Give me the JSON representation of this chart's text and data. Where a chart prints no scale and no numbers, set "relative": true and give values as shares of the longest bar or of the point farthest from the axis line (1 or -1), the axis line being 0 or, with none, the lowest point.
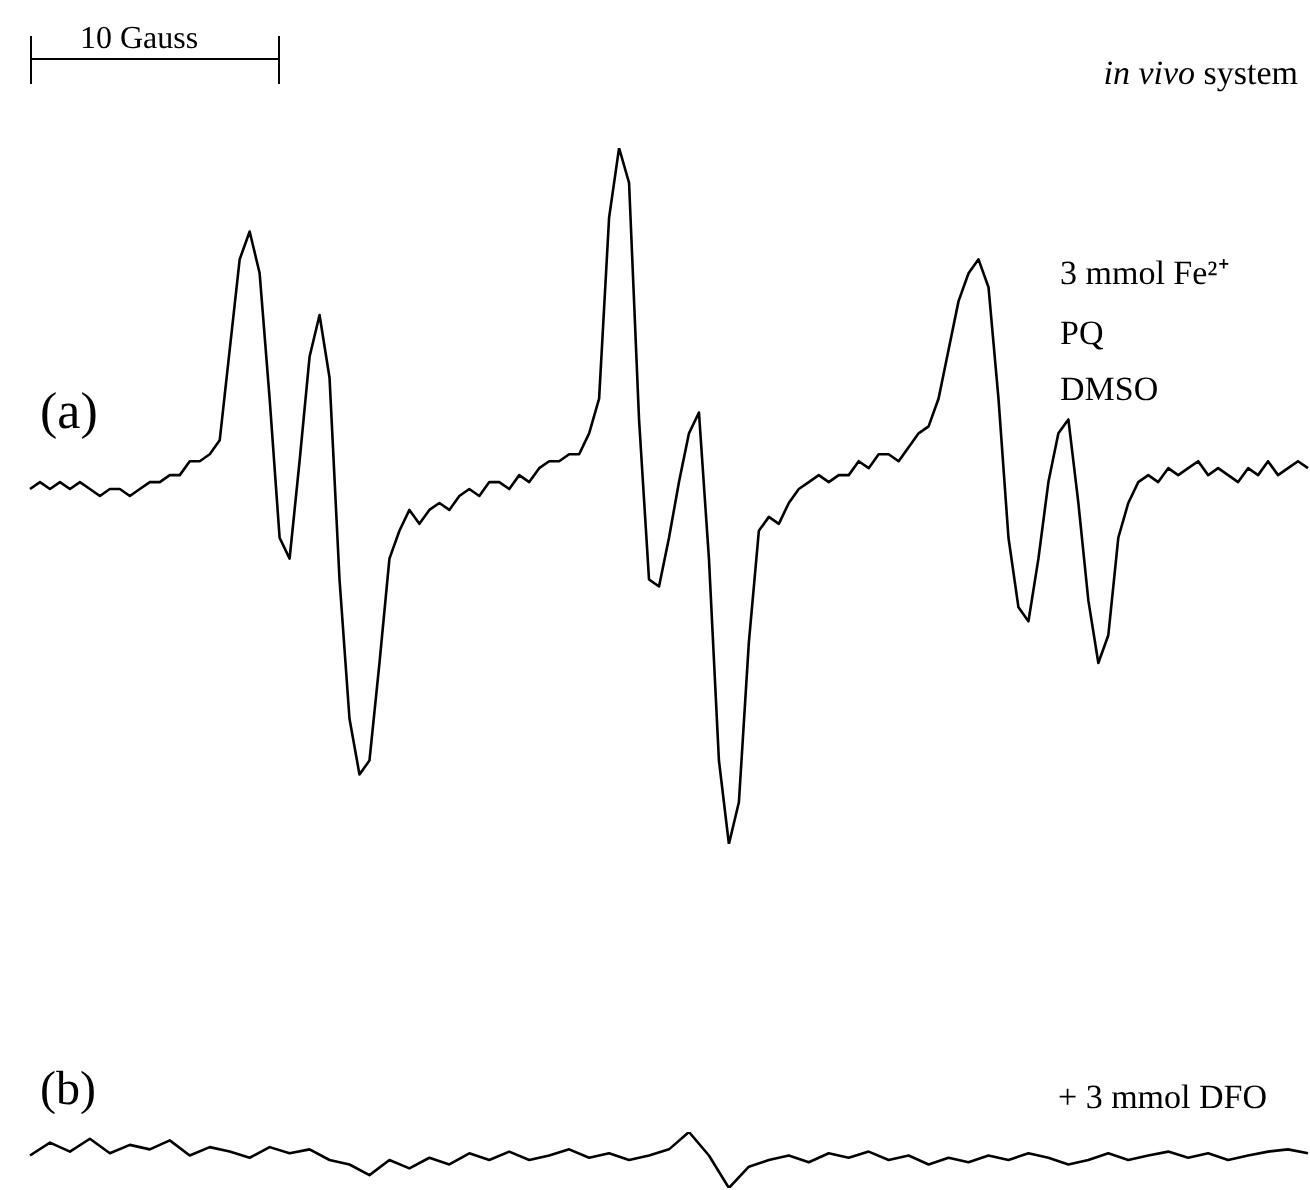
{
  "chart_data": [
    {
      "type": "line",
      "relative": true,
      "color": "#000000",
      "marker": "none",
      "legend": false,
      "annotations": [
        "10 Gauss",
        "in vivo system",
        "3 mmol Fe²⁺",
        "PQ",
        "DMSO",
        "(a)"
      ],
      "categories": [
        null,
        null,
        null,
        null,
        null,
        null,
        null,
        null,
        null,
        null,
        null,
        null,
        null,
        null,
        null,
        null,
        null,
        null,
        null,
        null,
        null,
        null,
        null,
        null,
        null,
        null,
        null,
        null,
        null,
        null,
        null,
        null,
        null,
        null,
        null,
        null,
        null,
        null,
        null,
        null,
        null,
        null,
        null,
        null,
        null,
        null,
        null,
        null,
        null,
        null,
        null,
        null,
        null,
        null,
        null,
        null,
        null,
        null,
        null,
        null,
        null,
        null,
        null,
        null,
        null,
        null,
        null,
        null,
        null,
        null,
        null,
        null,
        null,
        null,
        null,
        null,
        null,
        null,
        null,
        null,
        null,
        null,
        null,
        null,
        null,
        null,
        null,
        null,
        null,
        null,
        null,
        null,
        null,
        null,
        null,
        null,
        null,
        null,
        null,
        null,
        null,
        null,
        null,
        null,
        null,
        null,
        null,
        null,
        null,
        null,
        null,
        null,
        null,
        null,
        null,
        null,
        null,
        null,
        null,
        null,
        null,
        null,
        null,
        null,
        null,
        null,
        null,
        null,
        null
      ],
      "values": [
        0.51,
        0.52,
        0.51,
        0.52,
        0.51,
        0.52,
        0.51,
        0.5,
        0.51,
        0.51,
        0.5,
        0.51,
        0.52,
        0.52,
        0.53,
        0.53,
        0.55,
        0.55,
        0.56,
        0.58,
        0.71,
        0.84,
        0.88,
        0.82,
        0.64,
        0.44,
        0.41,
        0.55,
        0.7,
        0.76,
        0.67,
        0.38,
        0.18,
        0.1,
        0.12,
        0.26,
        0.41,
        0.45,
        0.48,
        0.46,
        0.48,
        0.49,
        0.48,
        0.5,
        0.51,
        0.5,
        0.52,
        0.52,
        0.51,
        0.53,
        0.52,
        0.54,
        0.55,
        0.55,
        0.56,
        0.56,
        0.59,
        0.64,
        0.9,
        1,
        0.95,
        0.61,
        0.38,
        0.37,
        0.44,
        0.52,
        0.59,
        0.62,
        0.41,
        0.12,
        0,
        0.06,
        0.29,
        0.45,
        0.47,
        0.46,
        0.49,
        0.51,
        0.52,
        0.53,
        0.52,
        0.53,
        0.53,
        0.55,
        0.54,
        0.56,
        0.56,
        0.55,
        0.57,
        0.59,
        0.6,
        0.64,
        0.71,
        0.78,
        0.82,
        0.84,
        0.8,
        0.64,
        0.44,
        0.34,
        0.32,
        0.41,
        0.52,
        0.59,
        0.61,
        0.49,
        0.35,
        0.26,
        0.3,
        0.44,
        0.49,
        0.52,
        0.53,
        0.52,
        0.54,
        0.53,
        0.54,
        0.55,
        0.53,
        0.54,
        0.53,
        0.52,
        0.54,
        0.53,
        0.55,
        0.53,
        0.54,
        0.55,
        0.54
      ]
    },
    {
      "type": "line",
      "relative": true,
      "color": "#000000",
      "marker": "none",
      "legend": false,
      "annotations": [
        "(b)",
        "+ 3 mmol DFO"
      ],
      "categories": [
        null,
        null,
        null,
        null,
        null,
        null,
        null,
        null,
        null,
        null,
        null,
        null,
        null,
        null,
        null,
        null,
        null,
        null,
        null,
        null,
        null,
        null,
        null,
        null,
        null,
        null,
        null,
        null,
        null,
        null,
        null,
        null,
        null,
        null,
        null,
        null,
        null,
        null,
        null,
        null,
        null,
        null,
        null,
        null,
        null,
        null,
        null,
        null,
        null,
        null,
        null,
        null,
        null,
        null,
        null,
        null,
        null,
        null,
        null,
        null,
        null,
        null,
        null,
        null,
        null
      ],
      "values": [
        0.58,
        0.81,
        0.65,
        0.88,
        0.62,
        0.77,
        0.69,
        0.85,
        0.58,
        0.73,
        0.65,
        0.54,
        0.73,
        0.62,
        0.69,
        0.5,
        0.42,
        0.23,
        0.5,
        0.35,
        0.54,
        0.42,
        0.62,
        0.5,
        0.65,
        0.5,
        0.58,
        0.69,
        0.54,
        0.62,
        0.5,
        0.58,
        0.69,
        1,
        0.58,
        0,
        0.38,
        0.5,
        0.58,
        0.46,
        0.62,
        0.54,
        0.65,
        0.5,
        0.58,
        0.42,
        0.54,
        0.46,
        0.58,
        0.5,
        0.62,
        0.54,
        0.42,
        0.5,
        0.62,
        0.5,
        0.58,
        0.65,
        0.54,
        0.62,
        0.5,
        0.58,
        0.65,
        0.69,
        0.62
      ]
    }
  ]
}
